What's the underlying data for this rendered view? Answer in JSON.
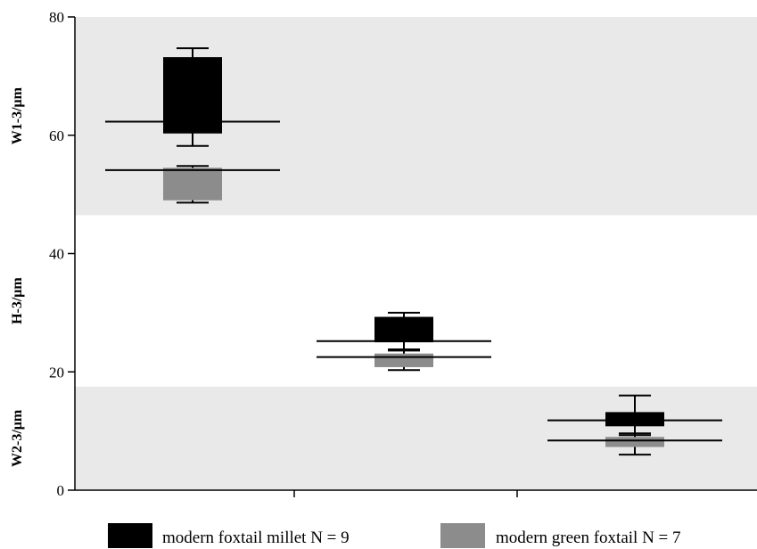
{
  "chart_data": {
    "type": "boxplot",
    "ylim": [
      0,
      80
    ],
    "y_ticks": [
      0,
      20,
      40,
      60,
      80
    ],
    "grid": false,
    "legend_position": "bottom",
    "bands": [
      {
        "label": "W1-3/μm",
        "from": 46.5,
        "to": 80
      },
      {
        "label": "H-3/μm",
        "from": 17.5,
        "to": 46.5,
        "shaded": false
      },
      {
        "label": "W2-3/μm",
        "from": 0,
        "to": 17.5
      }
    ],
    "categories": [
      "W1-3/μm",
      "H-3/μm",
      "W2-3/μm"
    ],
    "series": [
      {
        "name": "modern foxtail millet N = 9",
        "color": "#000000",
        "boxes": [
          {
            "min": 58.2,
            "q1": 60.3,
            "median": 62.3,
            "q3": 73.2,
            "max": 74.7
          },
          {
            "min": 23.8,
            "q1": 25.0,
            "median": 25.2,
            "q3": 29.3,
            "max": 30.0
          },
          {
            "min": 9.3,
            "q1": 10.8,
            "median": 11.8,
            "q3": 13.2,
            "max": 16.0
          }
        ]
      },
      {
        "name": "modern green foxtail N = 7",
        "color": "#8c8c8c",
        "boxes": [
          {
            "min": 48.6,
            "q1": 49.0,
            "median": 54.1,
            "q3": 54.5,
            "max": 54.8
          },
          {
            "min": 20.3,
            "q1": 20.8,
            "median": 22.5,
            "q3": 23.1,
            "max": 23.6
          },
          {
            "min": 6.0,
            "q1": 7.3,
            "median": 8.4,
            "q3": 9.0,
            "max": 9.6
          }
        ]
      }
    ]
  }
}
